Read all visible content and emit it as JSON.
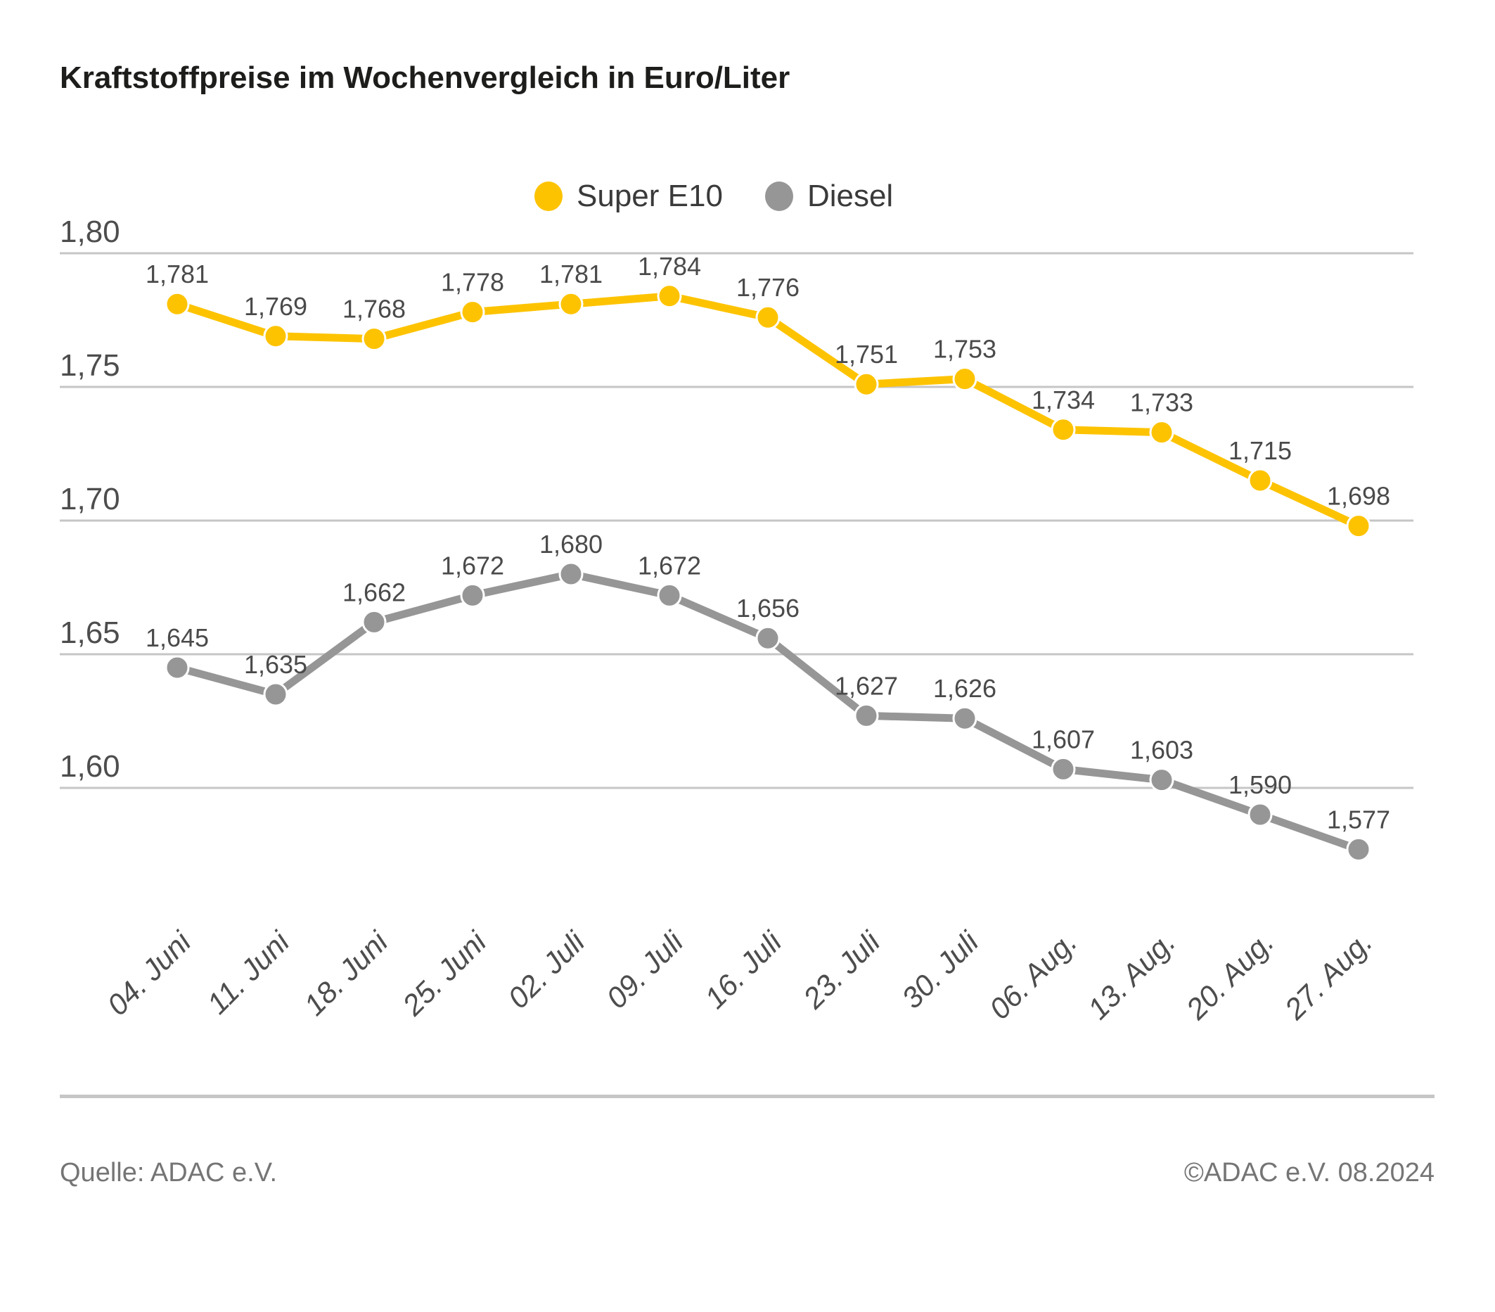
{
  "title": "Kraftstoffpreise im Wochenvergleich in Euro/Liter",
  "legend": {
    "series1_label": "Super E10",
    "series2_label": "Diesel"
  },
  "footer": {
    "source": "Quelle: ADAC e.V.",
    "copyright": "©ADAC e.V. 08.2024"
  },
  "colors": {
    "super_e10": "#fdc300",
    "diesel": "#969696",
    "grid": "#c6c6c6",
    "axis_text": "#4d4d4d",
    "value_label": "#4a4a4a",
    "title_text": "#1d1d1b",
    "footer_text": "#757575"
  },
  "chart_data": {
    "type": "line",
    "title": "Kraftstoffpreise im Wochenvergleich in Euro/Liter",
    "xlabel": "",
    "ylabel": "Euro/Liter",
    "grid": true,
    "legend_position": "top-center",
    "ylim": [
      1.55,
      1.82
    ],
    "y_ticks": [
      1.8,
      1.75,
      1.7,
      1.65,
      1.6
    ],
    "y_tick_labels": [
      "1,80",
      "1,75",
      "1,70",
      "1,65",
      "1,60"
    ],
    "categories": [
      "04. Juni",
      "11. Juni",
      "18. Juni",
      "25. Juni",
      "02. Juli",
      "09. Juli",
      "16. Juli",
      "23. Juli",
      "30. Juli",
      "06. Aug.",
      "13. Aug.",
      "20. Aug.",
      "27. Aug."
    ],
    "series": [
      {
        "name": "Super E10",
        "color_key": "super_e10",
        "values": [
          1.781,
          1.769,
          1.768,
          1.778,
          1.781,
          1.784,
          1.776,
          1.751,
          1.753,
          1.734,
          1.733,
          1.715,
          1.698
        ],
        "value_labels": [
          "1,781",
          "1,769",
          "1,768",
          "1,778",
          "1,781",
          "1,784",
          "1,776",
          "1,751",
          "1,753",
          "1,734",
          "1,733",
          "1,715",
          "1,698"
        ]
      },
      {
        "name": "Diesel",
        "color_key": "diesel",
        "values": [
          1.645,
          1.635,
          1.662,
          1.672,
          1.68,
          1.672,
          1.656,
          1.627,
          1.626,
          1.607,
          1.603,
          1.59,
          1.577
        ],
        "value_labels": [
          "1,645",
          "1,635",
          "1,662",
          "1,672",
          "1,680",
          "1,672",
          "1,656",
          "1,627",
          "1,626",
          "1,607",
          "1,603",
          "1,590",
          "1,577"
        ]
      }
    ]
  }
}
